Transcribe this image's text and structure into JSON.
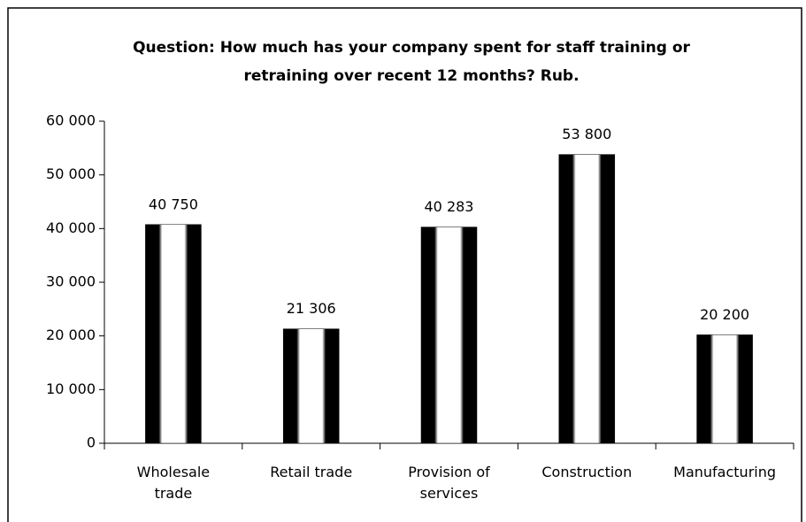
{
  "chart_data": {
    "type": "bar",
    "title": "Question: How much has your company spent for staff training or retraining over recent 12 months? Rub.",
    "categories": [
      "Wholesale trade",
      "Retail trade",
      "Provision of services",
      "Construction",
      "Manufacturing"
    ],
    "values": [
      40750,
      21306,
      40283,
      53800,
      20200
    ],
    "value_labels": [
      "40 750",
      "21 306",
      "40 283",
      "53 800",
      "20 200"
    ],
    "color": "#000000",
    "ylim": [
      0,
      60000
    ],
    "yticks": [
      0,
      {
        "value": 10000,
        "label": "10 000"
      },
      {
        "value": 20000,
        "label": "20 000"
      },
      {
        "value": 30000,
        "label": "30 000"
      },
      {
        "value": 40000,
        "label": "40 000"
      },
      {
        "value": 50000,
        "label": "50 000"
      },
      {
        "value": 60000,
        "label": "60 000"
      }
    ],
    "grid": false
  }
}
